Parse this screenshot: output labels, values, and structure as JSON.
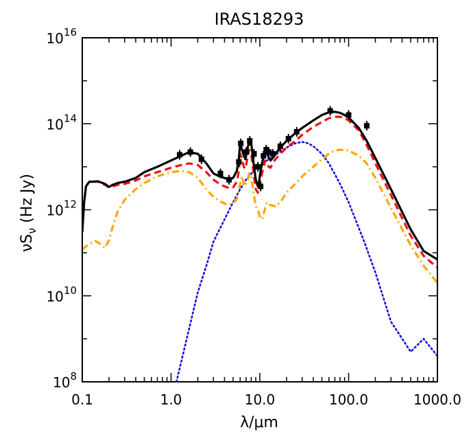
{
  "chart_data": {
    "type": "line",
    "title": "IRAS18293",
    "xlabel": "λ/μm",
    "ylabel": "νSν (Hz Jy)",
    "xscale": "log",
    "yscale": "log",
    "xlim": [
      0.1,
      1000.0
    ],
    "ylim": [
      100000000.0,
      1e+16
    ],
    "x_tick_labels": [
      "0.1",
      "1.0",
      "10.0",
      "100.0",
      "1000.0"
    ],
    "y_tick_labels": [
      {
        "base": "10",
        "exp": "8"
      },
      {
        "base": "10",
        "exp": "10"
      },
      {
        "base": "10",
        "exp": "12"
      },
      {
        "base": "10",
        "exp": "14"
      },
      {
        "base": "10",
        "exp": "16"
      }
    ],
    "series": [
      {
        "id": "total",
        "color": "#000000",
        "style": "solid",
        "x": [
          0.1,
          0.105,
          0.11,
          0.12,
          0.13,
          0.15,
          0.18,
          0.2,
          0.22,
          0.25,
          0.3,
          0.4,
          0.5,
          0.7,
          1.0,
          1.3,
          1.6,
          2.0,
          2.5,
          3.0,
          3.5,
          4.0,
          4.5,
          5.0,
          5.5,
          5.8,
          6.0,
          6.3,
          6.6,
          6.9,
          7.2,
          7.6,
          8.0,
          8.5,
          9.0,
          9.5,
          9.8,
          10.2,
          11.0,
          11.5,
          12.0,
          12.6,
          13.2,
          14.0,
          15.0,
          17.0,
          20.0,
          25.0,
          30.0,
          40.0,
          50.0,
          60.0,
          70.0,
          80.0,
          90.0,
          100.0,
          130.0,
          160.0,
          200.0,
          300.0,
          500.0,
          700.0,
          1000.0
        ],
        "y": [
          300000000000.0,
          1500000000000.0,
          3500000000000.0,
          4500000000000.0,
          4500000000000.0,
          4600000000000.0,
          4000000000000.0,
          3400000000000.0,
          3800000000000.0,
          4200000000000.0,
          4500000000000.0,
          5500000000000.0,
          7500000000000.0,
          10000000000000.0,
          14000000000000.0,
          18000000000000.0,
          22000000000000.0,
          20000000000000.0,
          12000000000000.0,
          7000000000000.0,
          6000000000000.0,
          5500000000000.0,
          5000000000000.0,
          5500000000000.0,
          8000000000000.0,
          15000000000000.0,
          35000000000000.0,
          25000000000000.0,
          18000000000000.0,
          15000000000000.0,
          25000000000000.0,
          40000000000000.0,
          35000000000000.0,
          12000000000000.0,
          5000000000000.0,
          3500000000000.0,
          4500000000000.0,
          8000000000000.0,
          18000000000000.0,
          25000000000000.0,
          22000000000000.0,
          16000000000000.0,
          14000000000000.0,
          16000000000000.0,
          20000000000000.0,
          28000000000000.0,
          40000000000000.0,
          60000000000000.0,
          80000000000000.0,
          120000000000000.0,
          160000000000000.0,
          185000000000000.0,
          190000000000000.0,
          180000000000000.0,
          160000000000000.0,
          140000000000000.0,
          80000000000000.0,
          40000000000000.0,
          16000000000000.0,
          3000000000000.0,
          350000000000.0,
          110000000000.0,
          70000000000.0
        ]
      },
      {
        "id": "red-dashed",
        "color": "#ee1111",
        "style": "dashed",
        "x": [
          0.1,
          0.105,
          0.11,
          0.12,
          0.13,
          0.15,
          0.18,
          0.2,
          0.22,
          0.25,
          0.3,
          0.4,
          0.5,
          0.7,
          1.0,
          1.3,
          1.6,
          2.0,
          2.5,
          3.0,
          3.5,
          4.0,
          4.5,
          5.0,
          5.5,
          5.8,
          6.0,
          6.3,
          6.6,
          6.9,
          7.2,
          7.6,
          8.0,
          8.5,
          9.0,
          9.5,
          9.8,
          10.2,
          11.0,
          11.5,
          12.0,
          12.6,
          13.2,
          14.0,
          15.0,
          17.0,
          20.0,
          25.0,
          30.0,
          40.0,
          50.0,
          60.0,
          70.0,
          80.0,
          90.0,
          100.0,
          130.0,
          160.0,
          200.0,
          300.0,
          500.0,
          700.0,
          1000.0
        ],
        "y": [
          300000000000.0,
          1500000000000.0,
          3500000000000.0,
          4500000000000.0,
          4500000000000.0,
          4500000000000.0,
          3800000000000.0,
          3300000000000.0,
          3500000000000.0,
          3800000000000.0,
          4000000000000.0,
          4800000000000.0,
          6000000000000.0,
          7500000000000.0,
          9500000000000.0,
          11000000000000.0,
          12000000000000.0,
          11000000000000.0,
          7500000000000.0,
          5000000000000.0,
          4000000000000.0,
          3500000000000.0,
          3200000000000.0,
          3300000000000.0,
          4500000000000.0,
          8000000000000.0,
          20000000000000.0,
          15000000000000.0,
          10000000000000.0,
          9000000000000.0,
          15000000000000.0,
          25000000000000.0,
          20000000000000.0,
          7000000000000.0,
          3000000000000.0,
          2500000000000.0,
          3000000000000.0,
          5000000000000.0,
          10000000000000.0,
          14000000000000.0,
          12000000000000.0,
          10000000000000.0,
          9500000000000.0,
          12000000000000.0,
          15000000000000.0,
          20000000000000.0,
          28000000000000.0,
          40000000000000.0,
          55000000000000.0,
          85000000000000.0,
          110000000000000.0,
          135000000000000.0,
          145000000000000.0,
          145000000000000.0,
          135000000000000.0,
          120000000000000.0,
          70000000000000.0,
          32000000000000.0,
          12000000000000.0,
          2200000000000.0,
          250000000000.0,
          85000000000.0,
          45000000000.0
        ]
      },
      {
        "id": "orange-dashdot",
        "color": "#ffa500",
        "style": "dashdot",
        "x": [
          0.1,
          0.11,
          0.12,
          0.14,
          0.16,
          0.18,
          0.2,
          0.22,
          0.25,
          0.3,
          0.4,
          0.5,
          0.7,
          1.0,
          1.3,
          1.6,
          2.0,
          2.5,
          3.0,
          3.5,
          4.0,
          4.5,
          5.0,
          5.5,
          6.0,
          6.3,
          6.7,
          7.2,
          7.6,
          8.0,
          8.5,
          9.0,
          9.5,
          10.0,
          10.5,
          11.0,
          12.0,
          13.0,
          15.0,
          17.0,
          20.0,
          25.0,
          30.0,
          40.0,
          50.0,
          60.0,
          70.0,
          80.0,
          100.0,
          130.0,
          160.0,
          200.0,
          300.0,
          500.0,
          700.0,
          1000.0
        ],
        "y": [
          120000000000.0,
          140000000000.0,
          160000000000.0,
          190000000000.0,
          160000000000.0,
          130000000000.0,
          200000000000.0,
          400000000000.0,
          900000000000.0,
          1700000000000.0,
          3000000000000.0,
          4200000000000.0,
          6000000000000.0,
          7500000000000.0,
          8000000000000.0,
          7500000000000.0,
          5500000000000.0,
          3000000000000.0,
          2000000000000.0,
          1600000000000.0,
          1400000000000.0,
          1300000000000.0,
          1400000000000.0,
          1800000000000.0,
          4000000000000.0,
          6000000000000.0,
          3500000000000.0,
          4500000000000.0,
          7000000000000.0,
          5500000000000.0,
          2500000000000.0,
          1200000000000.0,
          1000000000000.0,
          700000000000.0,
          600000000000.0,
          800000000000.0,
          1500000000000.0,
          1300000000000.0,
          1200000000000.0,
          1500000000000.0,
          2500000000000.0,
          4000000000000.0,
          6000000000000.0,
          10000000000000.0,
          15000000000000.0,
          20000000000000.0,
          24000000000000.0,
          25000000000000.0,
          24000000000000.0,
          18000000000000.0,
          12000000000000.0,
          5500000000000.0,
          1100000000000.0,
          150000000000.0,
          50000000000.0,
          20000000000.0
        ]
      },
      {
        "id": "blue-dotted",
        "color": "#1111dd",
        "style": "dotted",
        "x": [
          1.15,
          1.5,
          2.0,
          2.5,
          3.0,
          4.0,
          5.0,
          6.0,
          7.0,
          8.0,
          9.0,
          10.0,
          12.0,
          15.0,
          20.0,
          25.0,
          30.0,
          35.0,
          40.0,
          50.0,
          60.0,
          80.0,
          100.0,
          150.0,
          200.0,
          300.0,
          500.0,
          700.0,
          1000.0
        ],
        "y": [
          100000000.0,
          1000000000.0,
          12000000000.0,
          50000000000.0,
          180000000000.0,
          600000000000.0,
          1500000000000.0,
          3000000000000.0,
          5000000000000.0,
          7000000000000.0,
          8500000000000.0,
          9500000000000.0,
          14000000000000.0,
          19000000000000.0,
          28000000000000.0,
          35000000000000.0,
          38000000000000.0,
          35000000000000.0,
          30000000000000.0,
          20000000000000.0,
          12000000000000.0,
          4000000000000.0,
          1500000000000.0,
          180000000000.0,
          35000000000.0,
          2500000000.0,
          500000000.0,
          1000000000.0,
          400000000.0
        ]
      }
    ],
    "observations": {
      "color": "#000000",
      "x": [
        1.25,
        1.65,
        2.2,
        3.6,
        4.5,
        5.8,
        6.1,
        7.0,
        7.7,
        8.6,
        9.5,
        10.2,
        11.0,
        11.8,
        12.6,
        14.0,
        17.0,
        21.0,
        26.0,
        62.0,
        100.0,
        160.0
      ],
      "y": [
        19000000000000.0,
        22000000000000.0,
        15000000000000.0,
        7000000000000.0,
        5000000000000.0,
        13000000000000.0,
        35000000000000.0,
        22000000000000.0,
        40000000000000.0,
        20000000000000.0,
        10000000000000.0,
        3500000000000.0,
        18000000000000.0,
        25000000000000.0,
        22000000000000.0,
        20000000000000.0,
        30000000000000.0,
        45000000000000.0,
        65000000000000.0,
        200000000000000.0,
        160000000000000.0,
        90000000000000.0
      ]
    }
  }
}
